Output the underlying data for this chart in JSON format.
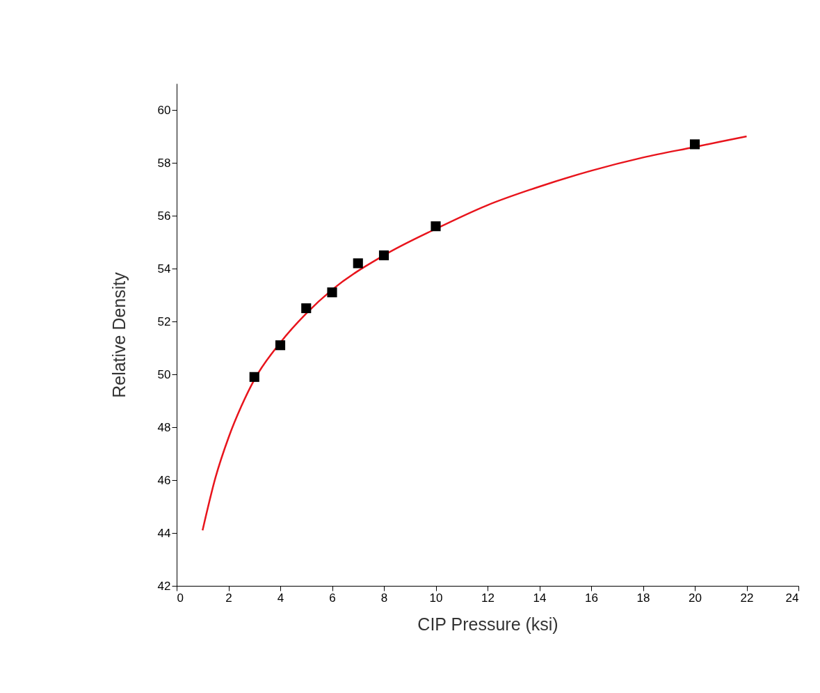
{
  "chart_data": {
    "type": "scatter",
    "xlabel": "CIP Pressure (ksi)",
    "ylabel": "Relative Density",
    "xlim": [
      0,
      24
    ],
    "ylim": [
      42,
      61
    ],
    "xticks": [
      0,
      2,
      4,
      6,
      8,
      10,
      12,
      14,
      16,
      18,
      20,
      22,
      24
    ],
    "yticks": [
      42,
      44,
      46,
      48,
      50,
      52,
      54,
      56,
      58,
      60
    ],
    "grid": false,
    "series": [
      {
        "color": "#000000",
        "marker": "square",
        "x": [
          3,
          4,
          5,
          6,
          7,
          8,
          10,
          20
        ],
        "values": [
          49.9,
          51.1,
          52.5,
          53.1,
          54.2,
          54.5,
          55.6,
          58.7
        ]
      },
      {
        "type": "line",
        "color": "#e8141c",
        "marker": "none",
        "line_style": "solid",
        "x": [
          1,
          1.5,
          2,
          2.5,
          3,
          4,
          5,
          6,
          8,
          10,
          12,
          14,
          16,
          18,
          20,
          22
        ],
        "values": [
          44.1,
          46.1,
          47.6,
          48.8,
          49.8,
          51.2,
          52.3,
          53.2,
          54.5,
          55.5,
          56.4,
          57.1,
          57.7,
          58.2,
          58.6,
          59.0
        ]
      }
    ]
  }
}
